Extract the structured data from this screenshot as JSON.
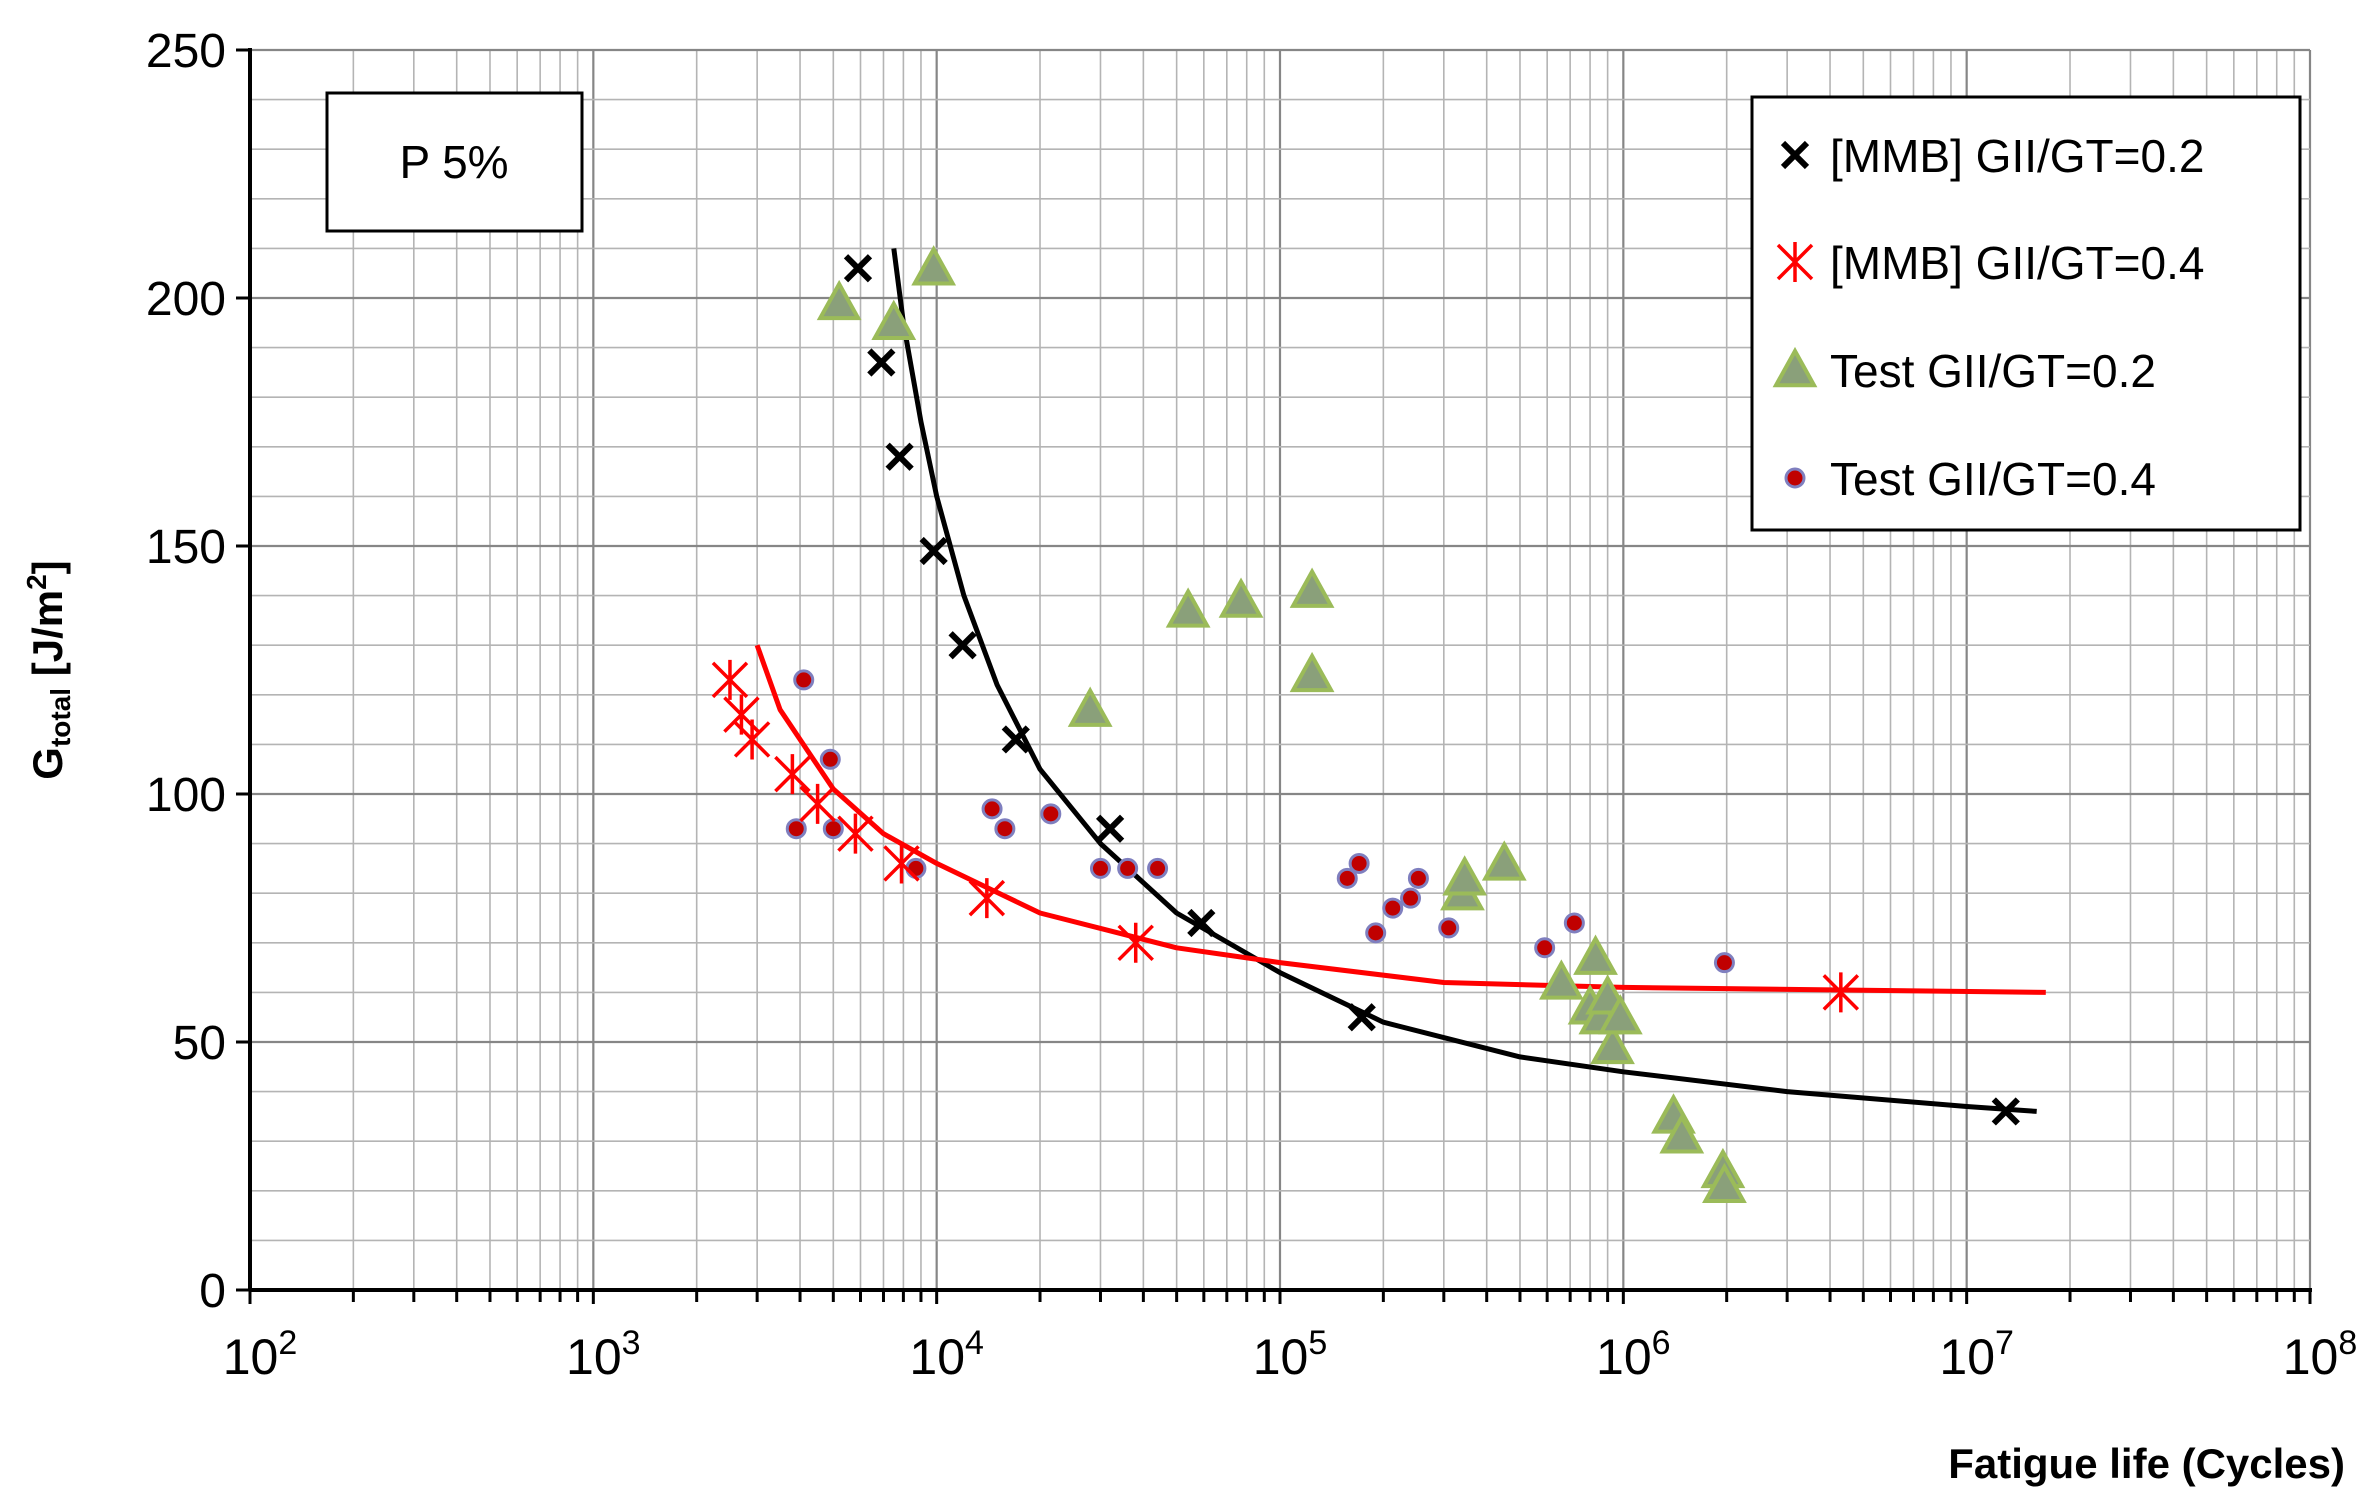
{
  "chart_data": {
    "type": "scatter",
    "xscale": "log",
    "xlim": [
      100,
      100000000
    ],
    "ylim": [
      0,
      250
    ],
    "yticks": [
      0,
      50,
      100,
      150,
      200,
      250
    ],
    "xtick_labels": [
      {
        "value": 100,
        "base": "10",
        "exp": "2"
      },
      {
        "value": 1000,
        "base": "10",
        "exp": "3"
      },
      {
        "value": 10000,
        "base": "10",
        "exp": "4"
      },
      {
        "value": 100000,
        "base": "10",
        "exp": "5"
      },
      {
        "value": 1000000,
        "base": "10",
        "exp": "6"
      },
      {
        "value": 10000000,
        "base": "10",
        "exp": "7"
      },
      {
        "value": 100000000,
        "base": "10",
        "exp": "8"
      }
    ],
    "xlabel": "Fatigue life (Cycles)",
    "ylabel": {
      "main": "G",
      "sub": "total",
      "unit": " [J/m",
      "sup": "2",
      "close": "]"
    },
    "annotation": "P 5%",
    "legend_position": "top-right",
    "grid": true,
    "series": [
      {
        "name": "[MMB] GII/GT=0.2",
        "marker": "x",
        "color": "#000000",
        "points": [
          [
            5900,
            206
          ],
          [
            6900,
            187
          ],
          [
            7800,
            168
          ],
          [
            9800,
            149
          ],
          [
            11900,
            130
          ],
          [
            17000,
            111
          ],
          [
            32000,
            93
          ],
          [
            59000,
            74
          ],
          [
            173000,
            55
          ],
          [
            13000000,
            36
          ]
        ]
      },
      {
        "name": "[MMB] GII/GT=0.4",
        "marker": "star",
        "color": "#ff0000",
        "points": [
          [
            2500,
            123
          ],
          [
            2700,
            116
          ],
          [
            2900,
            111
          ],
          [
            3800,
            104
          ],
          [
            4500,
            98
          ],
          [
            5800,
            92
          ],
          [
            7900,
            86
          ],
          [
            14000,
            79
          ],
          [
            38000,
            70
          ],
          [
            4300000,
            60
          ]
        ]
      },
      {
        "name": "Test GII/GT=0.2",
        "marker": "triangle",
        "color": "#8aa07a",
        "edge": "#9bbb59",
        "points": [
          [
            5200,
            199
          ],
          [
            7500,
            195
          ],
          [
            9800,
            206
          ],
          [
            28000,
            117
          ],
          [
            54000,
            137
          ],
          [
            77000,
            139
          ],
          [
            124000,
            141
          ],
          [
            124000,
            124
          ],
          [
            340000,
            80
          ],
          [
            345000,
            83
          ],
          [
            450000,
            86
          ],
          [
            660000,
            62
          ],
          [
            800000,
            57
          ],
          [
            830000,
            67
          ],
          [
            860000,
            55
          ],
          [
            900000,
            59
          ],
          [
            930000,
            49
          ],
          [
            980000,
            55
          ],
          [
            1400000,
            35
          ],
          [
            1480000,
            31
          ],
          [
            1950000,
            24
          ],
          [
            1970000,
            21
          ]
        ]
      },
      {
        "name": "Test GII/GT=0.4",
        "marker": "circle",
        "color": "#c00000",
        "edge": "#7f7fbf",
        "points": [
          [
            3900,
            93
          ],
          [
            4100,
            123
          ],
          [
            4900,
            107
          ],
          [
            5000,
            93
          ],
          [
            8700,
            85
          ],
          [
            14500,
            97
          ],
          [
            15800,
            93
          ],
          [
            21500,
            96
          ],
          [
            30000,
            85
          ],
          [
            36000,
            85
          ],
          [
            44000,
            85
          ],
          [
            157000,
            83
          ],
          [
            170000,
            86
          ],
          [
            190000,
            72
          ],
          [
            213000,
            77
          ],
          [
            240000,
            79
          ],
          [
            253000,
            83
          ],
          [
            310000,
            73
          ],
          [
            590000,
            69
          ],
          [
            720000,
            74
          ],
          [
            1970000,
            66
          ]
        ]
      }
    ],
    "fits": [
      {
        "name": "fit [MMB] GII/GT=0.2",
        "color": "#000000",
        "points": [
          [
            7500,
            210
          ],
          [
            8000,
            195
          ],
          [
            9000,
            175
          ],
          [
            10000,
            160
          ],
          [
            12000,
            140
          ],
          [
            15000,
            122
          ],
          [
            20000,
            105
          ],
          [
            30000,
            90
          ],
          [
            50000,
            76
          ],
          [
            100000,
            64
          ],
          [
            200000,
            54
          ],
          [
            500000,
            47
          ],
          [
            1000000,
            44
          ],
          [
            3000000,
            40
          ],
          [
            10000000,
            37
          ],
          [
            16000000,
            36
          ]
        ]
      },
      {
        "name": "fit [MMB] GII/GT=0.4",
        "color": "#ff0000",
        "points": [
          [
            3000,
            130
          ],
          [
            3500,
            117
          ],
          [
            4000,
            111
          ],
          [
            5000,
            101
          ],
          [
            7000,
            92
          ],
          [
            10000,
            86
          ],
          [
            20000,
            76
          ],
          [
            50000,
            69
          ],
          [
            100000,
            66
          ],
          [
            300000,
            62
          ],
          [
            1000000,
            61
          ],
          [
            17000000,
            60
          ]
        ]
      }
    ]
  }
}
